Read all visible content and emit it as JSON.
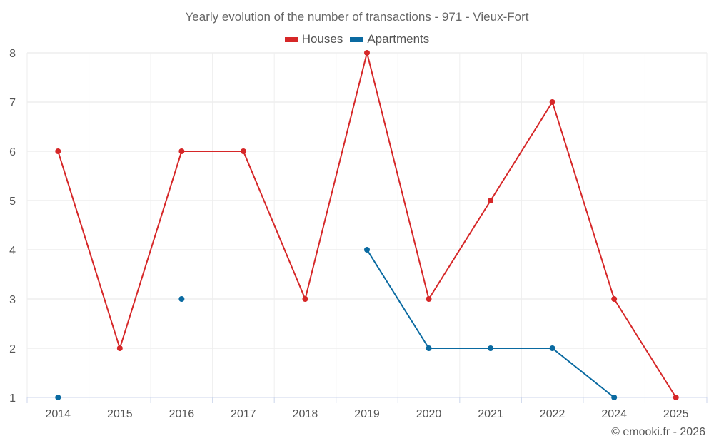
{
  "chart_data": {
    "type": "line",
    "title": "Yearly evolution of the number of transactions - 971 - Vieux-Fort",
    "categories": [
      "2014",
      "2015",
      "2016",
      "2017",
      "2018",
      "2019",
      "2020",
      "2021",
      "2022",
      "2024",
      "2025"
    ],
    "series": [
      {
        "name": "Houses",
        "color": "#d62728",
        "values": [
          6,
          2,
          6,
          6,
          3,
          8,
          3,
          5,
          7,
          3,
          1
        ]
      },
      {
        "name": "Apartments",
        "color": "#0a6aa1",
        "values": [
          1,
          null,
          3,
          null,
          null,
          4,
          2,
          2,
          2,
          1,
          null
        ]
      }
    ],
    "ylim": [
      1,
      8
    ],
    "yticks": [
      1,
      2,
      3,
      4,
      5,
      6,
      7,
      8
    ],
    "grid": true,
    "legend_position": "top-center"
  },
  "credits": "© emooki.fr - 2026"
}
